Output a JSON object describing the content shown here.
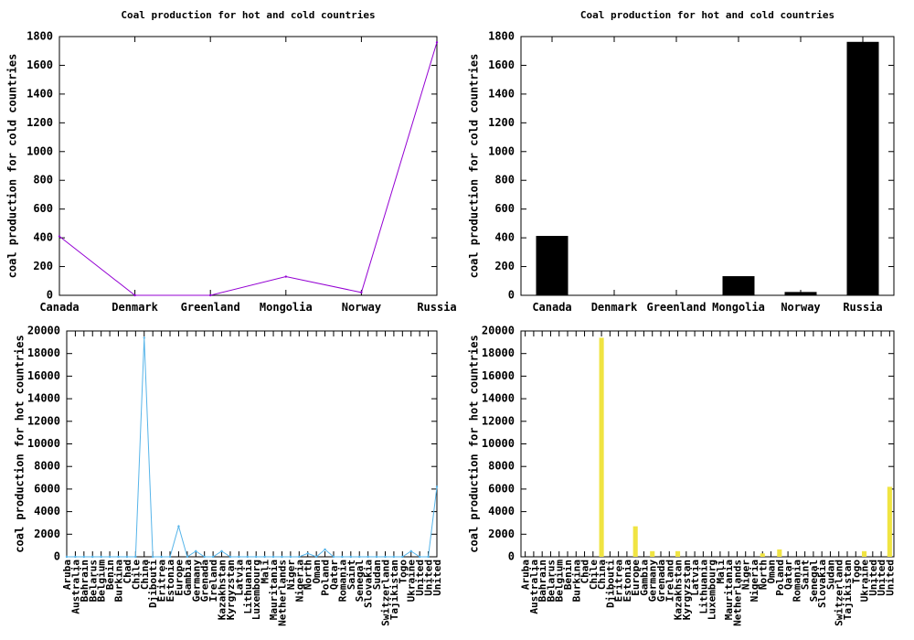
{
  "chart_data": [
    {
      "type": "line",
      "title": "Coal production for hot and cold countries",
      "ylabel": "coal production for cold countries",
      "xlabel": "",
      "ylim": [
        0,
        1800
      ],
      "yticks": [
        0,
        200,
        400,
        600,
        800,
        1000,
        1200,
        1400,
        1600,
        1800
      ],
      "categories": [
        "Canada",
        "Denmark",
        "Greenland",
        "Mongolia",
        "Norway",
        "Russia"
      ],
      "values": [
        410,
        0,
        0,
        130,
        20,
        1760
      ],
      "color": "#9400d3",
      "grid": false,
      "legend": "none"
    },
    {
      "type": "bar",
      "title": "Coal production for hot and cold countries",
      "ylabel": "coal production for cold countries",
      "xlabel": "",
      "ylim": [
        0,
        1800
      ],
      "yticks": [
        0,
        200,
        400,
        600,
        800,
        1000,
        1200,
        1400,
        1600,
        1800
      ],
      "categories": [
        "Canada",
        "Denmark",
        "Greenland",
        "Mongolia",
        "Norway",
        "Russia"
      ],
      "values": [
        410,
        0,
        0,
        130,
        20,
        1760
      ],
      "color": "#000000",
      "grid": false,
      "legend": "none"
    },
    {
      "type": "line",
      "title": "",
      "ylabel": "coal production for hot countries",
      "xlabel": "",
      "ylim": [
        0,
        20000
      ],
      "yticks": [
        0,
        2000,
        4000,
        6000,
        8000,
        10000,
        12000,
        14000,
        16000,
        18000,
        20000
      ],
      "categories": [
        "Aruba",
        "Australia",
        "Bahrain",
        "Belarus",
        "Belgium",
        "Benin",
        "Burkina",
        "Chad",
        "Chile",
        "China",
        "Djibouti",
        "Eritrea",
        "Estonia",
        "Europe",
        "Gambia",
        "Germany",
        "Grenada",
        "Ireland",
        "Kazakhstan",
        "Kyrgyzstan",
        "Latvia",
        "Lithuania",
        "Luxembourg",
        "Mali",
        "Mauritania",
        "Netherlands",
        "Niger",
        "Nigeria",
        "North",
        "Oman",
        "Poland",
        "Qatar",
        "Romania",
        "Saint",
        "Senegal",
        "Slovakia",
        "Sudan",
        "Switzerland",
        "Tajikistan",
        "Togo",
        "Ukraine",
        "United",
        "United",
        "United"
      ],
      "values": [
        0,
        0,
        0,
        0,
        0,
        0,
        0,
        0,
        0,
        19400,
        0,
        0,
        0,
        2700,
        0,
        500,
        0,
        0,
        500,
        0,
        0,
        0,
        0,
        0,
        0,
        0,
        0,
        0,
        300,
        0,
        650,
        0,
        0,
        0,
        0,
        0,
        0,
        0,
        0,
        0,
        500,
        0,
        0,
        6200
      ],
      "color": "#56b4e9",
      "grid": false,
      "legend": "none"
    },
    {
      "type": "bar",
      "title": "",
      "ylabel": "coal production for hot countries",
      "xlabel": "",
      "ylim": [
        0,
        20000
      ],
      "yticks": [
        0,
        2000,
        4000,
        6000,
        8000,
        10000,
        12000,
        14000,
        16000,
        18000,
        20000
      ],
      "categories": [
        "Aruba",
        "Australia",
        "Bahrain",
        "Belarus",
        "Belgium",
        "Benin",
        "Burkina",
        "Chad",
        "Chile",
        "China",
        "Djibouti",
        "Eritrea",
        "Estonia",
        "Europe",
        "Gambia",
        "Germany",
        "Grenada",
        "Ireland",
        "Kazakhstan",
        "Kyrgyzstan",
        "Latvia",
        "Lithuania",
        "Luxembourg",
        "Mali",
        "Mauritania",
        "Netherlands",
        "Niger",
        "Nigeria",
        "North",
        "Oman",
        "Poland",
        "Qatar",
        "Romania",
        "Saint",
        "Senegal",
        "Slovakia",
        "Sudan",
        "Switzerland",
        "Tajikistan",
        "Togo",
        "Ukraine",
        "United",
        "United",
        "United"
      ],
      "values": [
        0,
        0,
        0,
        0,
        0,
        0,
        0,
        0,
        0,
        19400,
        0,
        0,
        0,
        2700,
        0,
        500,
        0,
        0,
        500,
        0,
        0,
        0,
        0,
        0,
        0,
        0,
        0,
        0,
        300,
        0,
        650,
        0,
        0,
        0,
        0,
        0,
        0,
        0,
        0,
        0,
        500,
        0,
        0,
        6200
      ],
      "color": "#f0e442",
      "grid": false,
      "legend": "none"
    }
  ]
}
